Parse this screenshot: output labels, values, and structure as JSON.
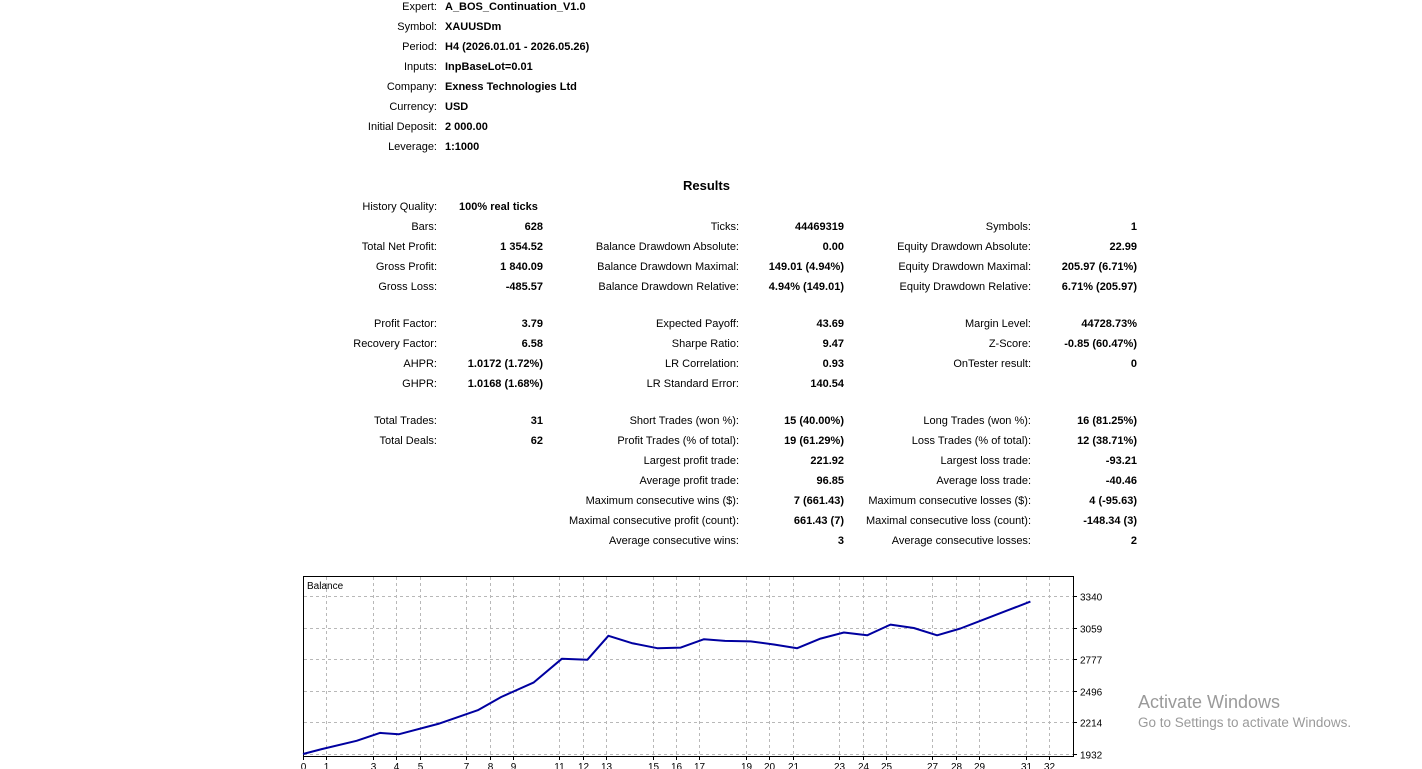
{
  "settings": [
    {
      "label": "Expert:",
      "value": "A_BOS_Continuation_V1.0"
    },
    {
      "label": "Symbol:",
      "value": "XAUUSDm"
    },
    {
      "label": "Period:",
      "value": "H4 (2026.01.01 - 2026.05.26)"
    },
    {
      "label": "Inputs:",
      "value": "InpBaseLot=0.01"
    },
    {
      "label": "Company:",
      "value": "Exness Technologies Ltd"
    },
    {
      "label": "Currency:",
      "value": "USD"
    },
    {
      "label": "Initial Deposit:",
      "value": "2 000.00"
    },
    {
      "label": "Leverage:",
      "value": "1:1000"
    }
  ],
  "results_title": "Results",
  "history_quality": {
    "label": "History Quality:",
    "value": "100% real ticks"
  },
  "col1": [
    {
      "label": "Bars:",
      "value": "628"
    },
    {
      "label": "Total Net Profit:",
      "value": "1 354.52"
    },
    {
      "label": "Gross Profit:",
      "value": "1 840.09"
    },
    {
      "label": "Gross Loss:",
      "value": "-485.57"
    },
    {
      "label": "Profit Factor:",
      "value": "3.79"
    },
    {
      "label": "Recovery Factor:",
      "value": "6.58"
    },
    {
      "label": "AHPR:",
      "value": "1.0172 (1.72%)"
    },
    {
      "label": "GHPR:",
      "value": "1.0168 (1.68%)"
    },
    {
      "label": "Total Trades:",
      "value": "31"
    },
    {
      "label": "Total Deals:",
      "value": "62"
    }
  ],
  "col2": [
    {
      "label": "Ticks:",
      "value": "44469319"
    },
    {
      "label": "Balance Drawdown Absolute:",
      "value": "0.00"
    },
    {
      "label": "Balance Drawdown Maximal:",
      "value": "149.01 (4.94%)"
    },
    {
      "label": "Balance Drawdown Relative:",
      "value": "4.94% (149.01)"
    },
    {
      "label": "Expected Payoff:",
      "value": "43.69"
    },
    {
      "label": "Sharpe Ratio:",
      "value": "9.47"
    },
    {
      "label": "LR Correlation:",
      "value": "0.93"
    },
    {
      "label": "LR Standard Error:",
      "value": "140.54"
    },
    {
      "label": "Short Trades (won %):",
      "value": "15 (40.00%)"
    },
    {
      "label": "Profit Trades (% of total):",
      "value": "19 (61.29%)"
    },
    {
      "label": "Largest profit trade:",
      "value": "221.92"
    },
    {
      "label": "Average profit trade:",
      "value": "96.85"
    },
    {
      "label": "Maximum consecutive wins ($):",
      "value": "7 (661.43)"
    },
    {
      "label": "Maximal consecutive profit (count):",
      "value": "661.43 (7)"
    },
    {
      "label": "Average consecutive wins:",
      "value": "3"
    }
  ],
  "col3": [
    {
      "label": "Symbols:",
      "value": "1"
    },
    {
      "label": "Equity Drawdown Absolute:",
      "value": "22.99"
    },
    {
      "label": "Equity Drawdown Maximal:",
      "value": "205.97 (6.71%)"
    },
    {
      "label": "Equity Drawdown Relative:",
      "value": "6.71% (205.97)"
    },
    {
      "label": "Margin Level:",
      "value": "44728.73%"
    },
    {
      "label": "Z-Score:",
      "value": "-0.85 (60.47%)"
    },
    {
      "label": "OnTester result:",
      "value": "0"
    },
    {
      "label": "Long Trades (won %):",
      "value": "16 (81.25%)"
    },
    {
      "label": "Loss Trades (% of total):",
      "value": "12 (38.71%)"
    },
    {
      "label": "Largest loss trade:",
      "value": "-93.21"
    },
    {
      "label": "Average loss trade:",
      "value": "-40.46"
    },
    {
      "label": "Maximum consecutive losses ($):",
      "value": "4 (-95.63)"
    },
    {
      "label": "Maximal consecutive loss (count):",
      "value": "-148.34 (3)"
    },
    {
      "label": "Average consecutive losses:",
      "value": "2"
    }
  ],
  "chart_data": {
    "type": "line",
    "title": "",
    "legend": "Balance",
    "xlabel": "",
    "ylabel": "",
    "x_ticks": [
      "0",
      "1",
      "3",
      "4",
      "5",
      "7",
      "8",
      "9",
      "11",
      "12",
      "13",
      "15",
      "16",
      "17",
      "19",
      "20",
      "21",
      "23",
      "24",
      "25",
      "27",
      "28",
      "29",
      "31",
      "32"
    ],
    "y_ticks": [
      "1932",
      "2214",
      "2496",
      "2777",
      "3059",
      "3340"
    ],
    "xlim": [
      0,
      32
    ],
    "ylim": [
      1932,
      3340
    ],
    "grid": true,
    "line_color": "#0000a0",
    "series": [
      {
        "x": [
          0,
          0.8,
          2.3,
          3.3,
          4.1,
          5.8,
          7.5,
          8.5,
          9.9,
          11.1,
          12.2,
          13.1,
          14.1,
          15.2,
          16.2,
          17.2,
          18.1,
          19.2,
          20.2,
          21.2,
          22.2,
          23.2,
          24.2,
          25.2,
          26.2,
          27.2,
          28.2,
          29.2,
          30.2,
          31.2
        ],
        "y": [
          1932,
          1976,
          2050,
          2120,
          2108,
          2200,
          2322,
          2440,
          2570,
          2780,
          2772,
          2985,
          2920,
          2875,
          2880,
          2955,
          2940,
          2935,
          2908,
          2875,
          2960,
          3015,
          2990,
          3085,
          3055,
          2990,
          3050,
          3130,
          3210,
          3290
        ]
      }
    ]
  },
  "watermark": {
    "line1": "Activate Windows",
    "line2": "Go to Settings to activate Windows."
  }
}
